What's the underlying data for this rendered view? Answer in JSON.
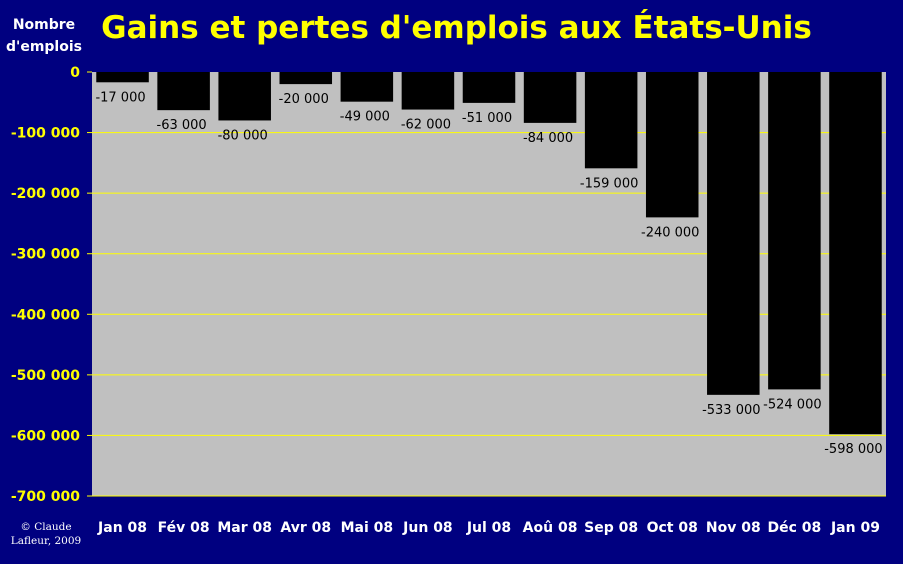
{
  "chart_data": {
    "type": "bar",
    "title": "Gains et pertes d'emplois aux États-Unis",
    "ylabel_lines": [
      "Nombre",
      "d'emplois"
    ],
    "xlabel": "",
    "categories": [
      "Jan 08",
      "Fév 08",
      "Mar 08",
      "Avr 08",
      "Mai 08",
      "Jun 08",
      "Jul 08",
      "Aoû 08",
      "Sep 08",
      "Oct 08",
      "Nov 08",
      "Déc 08",
      "Jan 09"
    ],
    "values": [
      -17000,
      -63000,
      -80000,
      -20000,
      -49000,
      -62000,
      -51000,
      -84000,
      -159000,
      -240000,
      -533000,
      -524000,
      -598000
    ],
    "data_labels": [
      "-17 000",
      "-63 000",
      "-80 000",
      "-20 000",
      "-49 000",
      "-62 000",
      "-51 000",
      "-84 000",
      "-159 000",
      "-240 000",
      "-533 000",
      "-524 000",
      "-598 000"
    ],
    "ylim": [
      -700000,
      0
    ],
    "yticks": [
      0,
      -100000,
      -200000,
      -300000,
      -400000,
      -500000,
      -600000,
      -700000
    ],
    "ytick_labels": [
      "0",
      "-100 000",
      "-200 000",
      "-300 000",
      "-400 000",
      "-500 000",
      "-600 000",
      "-700 000"
    ],
    "grid": true,
    "legend": "none",
    "colors": {
      "background": "#000080",
      "plot_area": "#c0c0c0",
      "bars": "#000000",
      "gridlines": "#ffff00",
      "title": "#ffff00",
      "ytick_text": "#ffff00",
      "xtick_text": "#ffffff"
    }
  },
  "credit_lines": [
    "© Claude",
    "Lafleur, 2009"
  ]
}
